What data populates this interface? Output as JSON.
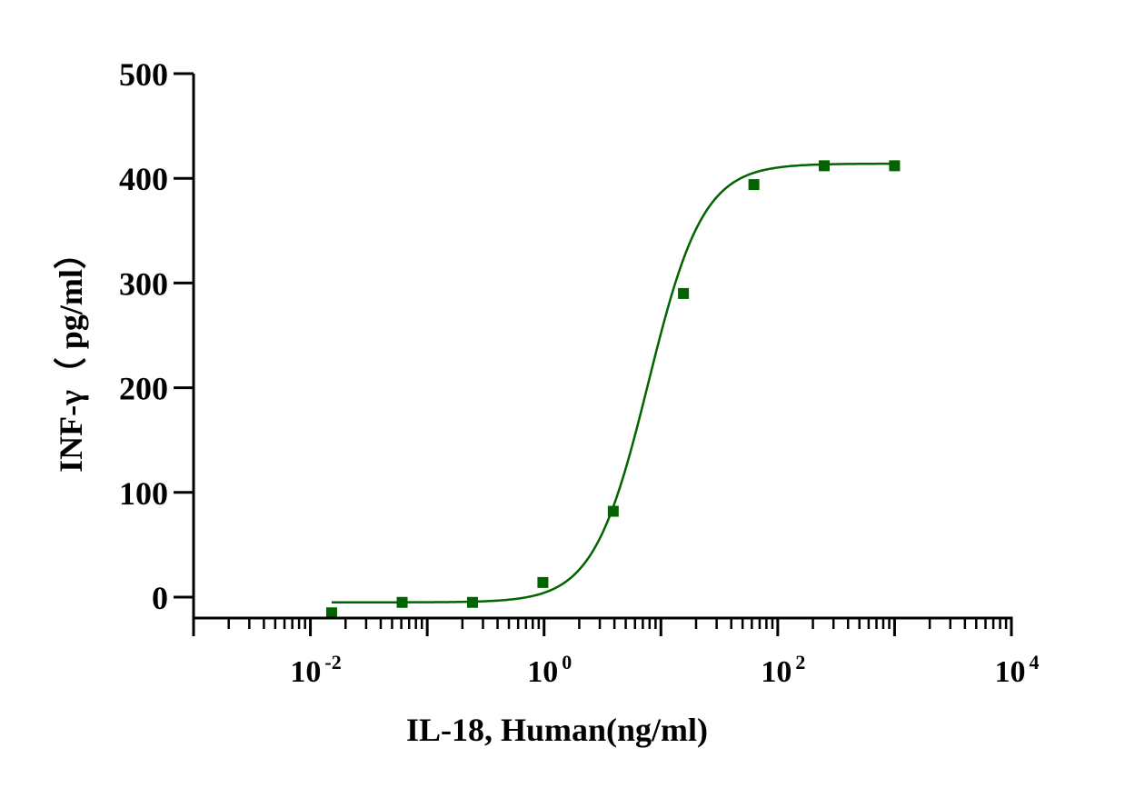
{
  "chart_data": {
    "type": "scatter",
    "xlabel": "IL-18, Human(ng/ml)",
    "ylabel": "INF-γ（ pg/ml）",
    "xscale": "log",
    "xlim": [
      0.001,
      10000
    ],
    "ylim": [
      -20,
      500
    ],
    "yticks": [
      0,
      100,
      200,
      300,
      400,
      500
    ],
    "xticks": [
      {
        "value": 0.01,
        "base": "10",
        "exp": "-2"
      },
      {
        "value": 1,
        "base": "10",
        "exp": "0"
      },
      {
        "value": 100,
        "base": "10",
        "exp": "2"
      },
      {
        "value": 10000,
        "base": "10",
        "exp": "4"
      }
    ],
    "grid": false,
    "legend": "none",
    "color": "#006400",
    "series": [
      {
        "x": [
          0.0152,
          0.061,
          0.244,
          0.977,
          3.91,
          15.6,
          62.5,
          250,
          1000
        ],
        "y": [
          -15,
          -5,
          -5,
          14,
          82,
          290,
          394,
          412,
          412
        ]
      }
    ],
    "fit_curve": {
      "model": "4PL",
      "bottom": -5,
      "top": 414,
      "ec50": 7.8,
      "hill": 1.85,
      "x_range": [
        0.0152,
        1000
      ]
    }
  }
}
